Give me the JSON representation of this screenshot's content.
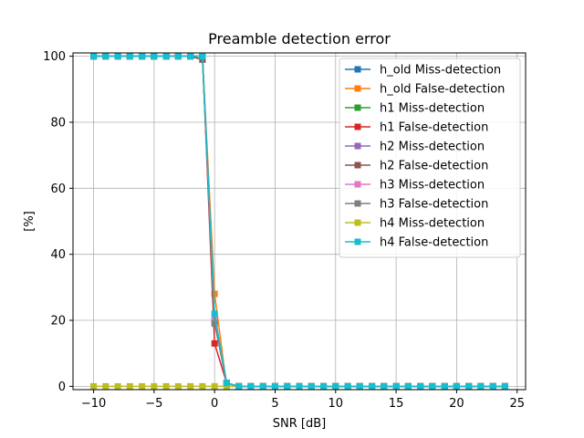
{
  "chart_data": {
    "type": "line",
    "title": "Preamble detection error",
    "xlabel": "SNR [dB]",
    "ylabel": "[%]",
    "xlim": [
      -11.7,
      25.7
    ],
    "ylim": [
      -1,
      101
    ],
    "xticks": [
      -10,
      -5,
      0,
      5,
      10,
      15,
      20,
      25
    ],
    "xtick_labels": [
      "−10",
      "−5",
      "0",
      "5",
      "10",
      "15",
      "20",
      "25"
    ],
    "yticks": [
      0,
      20,
      40,
      60,
      80,
      100
    ],
    "ytick_labels": [
      "0",
      "20",
      "40",
      "60",
      "80",
      "100"
    ],
    "grid": true,
    "legend_position": "top-right",
    "x": [
      -10,
      -9,
      -8,
      -7,
      -6,
      -5,
      -4,
      -3,
      -2,
      -1,
      0,
      1,
      2,
      3,
      4,
      5,
      6,
      7,
      8,
      9,
      10,
      11,
      12,
      13,
      14,
      15,
      16,
      17,
      18,
      19,
      20,
      21,
      22,
      23,
      24
    ],
    "series": [
      {
        "name": "h_old Miss-detection",
        "color": "#1f77b4",
        "values": [
          100,
          100,
          100,
          100,
          100,
          100,
          100,
          100,
          100,
          99,
          20,
          1,
          0,
          0,
          0,
          0,
          0,
          0,
          0,
          0,
          0,
          0,
          0,
          0,
          0,
          0,
          0,
          0,
          0,
          0,
          0,
          0,
          0,
          0,
          0
        ]
      },
      {
        "name": "h_old False-detection",
        "color": "#ff7f0e",
        "values": [
          100,
          100,
          100,
          100,
          100,
          100,
          100,
          100,
          100,
          100,
          28,
          0,
          0,
          0,
          0,
          0,
          0,
          0,
          0,
          0,
          0,
          0,
          0,
          0,
          0,
          0,
          0,
          0,
          0,
          0,
          0,
          0,
          0,
          0,
          0
        ]
      },
      {
        "name": "h1 Miss-detection",
        "color": "#2ca02c",
        "values": [
          100,
          100,
          100,
          100,
          100,
          100,
          100,
          100,
          100,
          100,
          20,
          1,
          0,
          0,
          0,
          0,
          0,
          0,
          0,
          0,
          0,
          0,
          0,
          0,
          0,
          0,
          0,
          0,
          0,
          0,
          0,
          0,
          0,
          0,
          0
        ]
      },
      {
        "name": "h1 False-detection",
        "color": "#d62728",
        "values": [
          100,
          100,
          100,
          100,
          100,
          100,
          100,
          100,
          100,
          100,
          13,
          1,
          0,
          0,
          0,
          0,
          0,
          0,
          0,
          0,
          0,
          0,
          0,
          0,
          0,
          0,
          0,
          0,
          0,
          0,
          0,
          0,
          0,
          0,
          0
        ]
      },
      {
        "name": "h2 Miss-detection",
        "color": "#9467bd",
        "values": [
          100,
          100,
          100,
          100,
          100,
          100,
          100,
          100,
          100,
          100,
          20,
          1,
          0,
          0,
          0,
          0,
          0,
          0,
          0,
          0,
          0,
          0,
          0,
          0,
          0,
          0,
          0,
          0,
          0,
          0,
          0,
          0,
          0,
          0,
          0
        ]
      },
      {
        "name": "h2 False-detection",
        "color": "#8c564b",
        "values": [
          100,
          100,
          100,
          100,
          100,
          100,
          100,
          100,
          100,
          99,
          20,
          1,
          0,
          0,
          0,
          0,
          0,
          0,
          0,
          0,
          0,
          0,
          0,
          0,
          0,
          0,
          0,
          0,
          0,
          0,
          0,
          0,
          0,
          0,
          0
        ]
      },
      {
        "name": "h3 Miss-detection",
        "color": "#e377c2",
        "values": [
          100,
          100,
          100,
          100,
          100,
          100,
          100,
          100,
          100,
          100,
          20,
          1,
          0,
          0,
          0,
          0,
          0,
          0,
          0,
          0,
          0,
          0,
          0,
          0,
          0,
          0,
          0,
          0,
          0,
          0,
          0,
          0,
          0,
          0,
          0
        ]
      },
      {
        "name": "h3 False-detection",
        "color": "#7f7f7f",
        "values": [
          100,
          100,
          100,
          100,
          100,
          100,
          100,
          100,
          100,
          100,
          19,
          1,
          0,
          0,
          0,
          0,
          0,
          0,
          0,
          0,
          0,
          0,
          0,
          0,
          0,
          0,
          0,
          0,
          0,
          0,
          0,
          0,
          0,
          0,
          0
        ]
      },
      {
        "name": "h4 Miss-detection",
        "color": "#bcbd22",
        "values": [
          0,
          0,
          0,
          0,
          0,
          0,
          0,
          0,
          0,
          0,
          0,
          0,
          0,
          0,
          0,
          0,
          0,
          0,
          0,
          0,
          0,
          0,
          0,
          0,
          0,
          0,
          0,
          0,
          0,
          0,
          0,
          0,
          0,
          0,
          0
        ]
      },
      {
        "name": "h4 False-detection",
        "color": "#17becf",
        "values": [
          100,
          100,
          100,
          100,
          100,
          100,
          100,
          100,
          100,
          100,
          22,
          1,
          0,
          0,
          0,
          0,
          0,
          0,
          0,
          0,
          0,
          0,
          0,
          0,
          0,
          0,
          0,
          0,
          0,
          0,
          0,
          0,
          0,
          0,
          0
        ]
      }
    ]
  }
}
